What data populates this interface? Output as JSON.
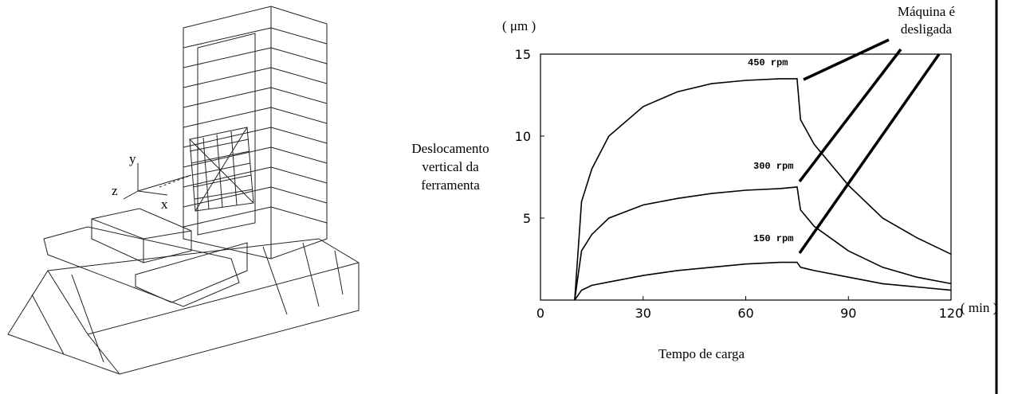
{
  "chart_data": {
    "type": "line",
    "y_unit": "( μm )",
    "x_unit": "( min )",
    "ylabel": [
      "Deslocamento",
      "vertical da",
      "ferramenta"
    ],
    "xlabel": "Tempo de carga",
    "annotation": [
      "Máquina é",
      "desligada"
    ],
    "x": [
      10,
      12,
      15,
      20,
      30,
      40,
      50,
      60,
      70,
      75,
      76,
      80,
      90,
      100,
      110,
      120
    ],
    "series": [
      {
        "name": "450 rpm",
        "color": "#000000",
        "values": [
          0,
          6,
          8,
          10,
          11.8,
          12.7,
          13.2,
          13.4,
          13.5,
          13.5,
          11,
          9.5,
          7,
          5,
          3.8,
          2.8
        ]
      },
      {
        "name": "300 rpm",
        "color": "#000000",
        "values": [
          0,
          3,
          4,
          5,
          5.8,
          6.2,
          6.5,
          6.7,
          6.8,
          6.9,
          5.5,
          4.5,
          3,
          2,
          1.4,
          1
        ]
      },
      {
        "name": "150 rpm",
        "color": "#000000",
        "values": [
          0,
          0.6,
          0.9,
          1.1,
          1.5,
          1.8,
          2,
          2.2,
          2.3,
          2.3,
          2,
          1.8,
          1.4,
          1,
          0.8,
          0.6
        ]
      }
    ],
    "xlim": [
      0,
      120
    ],
    "ylim": [
      0,
      15
    ],
    "xticks": [
      0,
      30,
      60,
      90,
      120
    ],
    "yticks": [
      5,
      10,
      15
    ],
    "drawing_axes": [
      "y",
      "z",
      "x"
    ]
  }
}
